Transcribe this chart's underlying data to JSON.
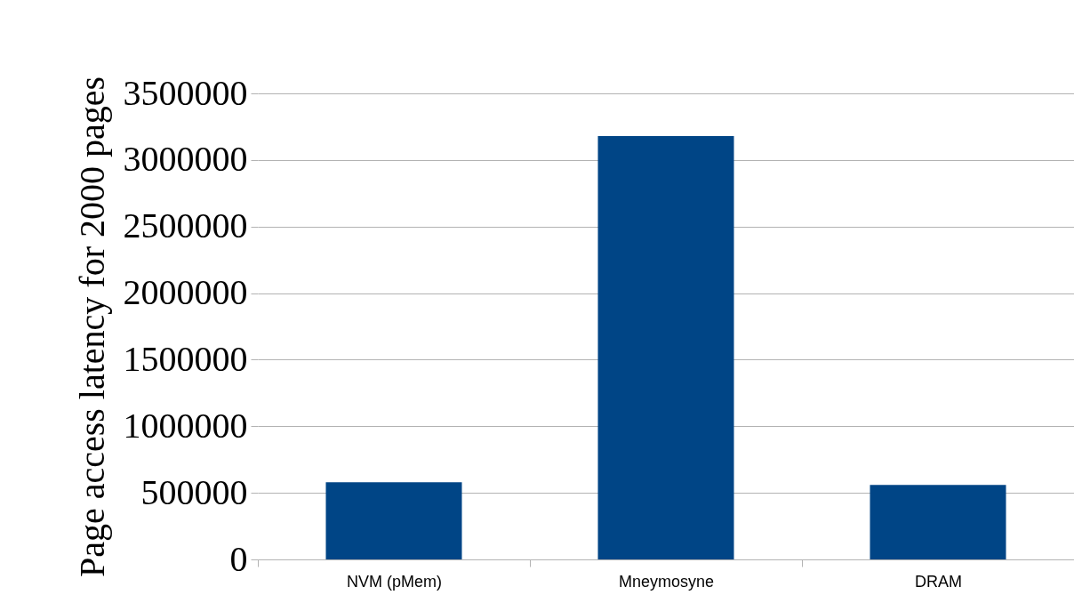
{
  "chart_data": {
    "type": "bar",
    "ylabel": "Page access latency for 2000 pages",
    "categories": [
      "NVM (pMem)",
      "Mneymosyne",
      "DRAM"
    ],
    "values": [
      580000,
      3180000,
      560000
    ],
    "color": "#004586",
    "ylim": [
      0,
      3500000
    ],
    "yticks": [
      0,
      500000,
      1000000,
      1500000,
      2000000,
      2500000,
      3000000,
      3500000
    ],
    "grid": "y"
  }
}
